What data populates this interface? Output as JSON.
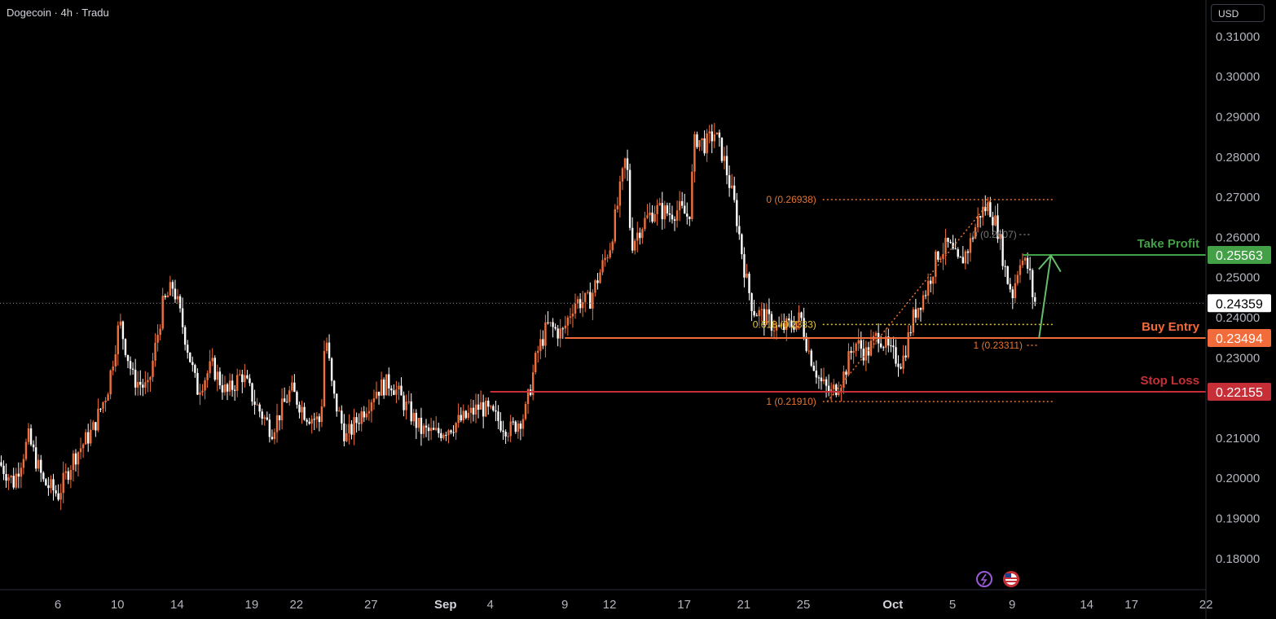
{
  "header": {
    "title": "Dogecoin · 4h · Tradu",
    "currency": "USD"
  },
  "chart_data": {
    "type": "candlestick",
    "symbol": "Dogecoin",
    "interval": "4h",
    "ylim": [
      0.1725,
      0.3145
    ],
    "y_ticks": [
      "0.31000",
      "0.30000",
      "0.29000",
      "0.28000",
      "0.27000",
      "0.26000",
      "0.25000",
      "0.24000",
      "0.23000",
      "0.21000",
      "0.20000",
      "0.19000",
      "0.18000"
    ],
    "y_tick_values": [
      0.31,
      0.3,
      0.29,
      0.28,
      0.27,
      0.26,
      0.25,
      0.24,
      0.23,
      0.21,
      0.2,
      0.19,
      0.18
    ],
    "x_ticks": [
      {
        "label": "6",
        "day": 6
      },
      {
        "label": "10",
        "day": 10
      },
      {
        "label": "14",
        "day": 14
      },
      {
        "label": "19",
        "day": 19
      },
      {
        "label": "22",
        "day": 22
      },
      {
        "label": "27",
        "day": 27
      },
      {
        "label": "Sep",
        "day": 32,
        "bold": true
      },
      {
        "label": "4",
        "day": 35
      },
      {
        "label": "9",
        "day": 40
      },
      {
        "label": "12",
        "day": 43
      },
      {
        "label": "17",
        "day": 48
      },
      {
        "label": "21",
        "day": 52
      },
      {
        "label": "25",
        "day": 56
      },
      {
        "label": "Oct",
        "day": 62,
        "bold": true
      },
      {
        "label": "5",
        "day": 66
      },
      {
        "label": "9",
        "day": 70
      },
      {
        "label": "14",
        "day": 75
      },
      {
        "label": "17",
        "day": 78
      },
      {
        "label": "22",
        "day": 83
      }
    ],
    "price_path": [
      [
        2.2,
        0.204
      ],
      [
        3.2,
        0.199
      ],
      [
        4.2,
        0.21
      ],
      [
        5.2,
        0.199
      ],
      [
        6.2,
        0.196
      ],
      [
        7.2,
        0.205
      ],
      [
        8.5,
        0.212
      ],
      [
        9.5,
        0.222
      ],
      [
        10.3,
        0.239
      ],
      [
        11.2,
        0.225
      ],
      [
        12.2,
        0.222
      ],
      [
        13.2,
        0.243
      ],
      [
        13.9,
        0.248
      ],
      [
        14.6,
        0.237
      ],
      [
        15.5,
        0.222
      ],
      [
        16.5,
        0.228
      ],
      [
        17.5,
        0.221
      ],
      [
        18.5,
        0.226
      ],
      [
        19.5,
        0.218
      ],
      [
        20.5,
        0.212
      ],
      [
        21.8,
        0.222
      ],
      [
        22.8,
        0.216
      ],
      [
        23.8,
        0.214
      ],
      [
        24.1,
        0.237
      ],
      [
        24.6,
        0.221
      ],
      [
        25.5,
        0.21
      ],
      [
        26.5,
        0.216
      ],
      [
        27.5,
        0.222
      ],
      [
        28.5,
        0.224
      ],
      [
        29.5,
        0.218
      ],
      [
        30.5,
        0.212
      ],
      [
        31.5,
        0.211
      ],
      [
        32.5,
        0.213
      ],
      [
        33.5,
        0.215
      ],
      [
        34.5,
        0.218
      ],
      [
        35.5,
        0.215
      ],
      [
        36.5,
        0.212
      ],
      [
        37.5,
        0.216
      ],
      [
        38.3,
        0.231
      ],
      [
        39.0,
        0.238
      ],
      [
        40.0,
        0.236
      ],
      [
        40.8,
        0.244
      ],
      [
        41.8,
        0.244
      ],
      [
        42.4,
        0.25
      ],
      [
        43.2,
        0.258
      ],
      [
        43.8,
        0.27
      ],
      [
        44.3,
        0.281
      ],
      [
        44.6,
        0.258
      ],
      [
        45.3,
        0.263
      ],
      [
        46.2,
        0.267
      ],
      [
        47.2,
        0.266
      ],
      [
        47.8,
        0.267
      ],
      [
        48.5,
        0.265
      ],
      [
        48.9,
        0.285
      ],
      [
        49.6,
        0.283
      ],
      [
        50.2,
        0.286
      ],
      [
        50.8,
        0.28
      ],
      [
        51.6,
        0.267
      ],
      [
        52.3,
        0.25
      ],
      [
        52.8,
        0.242
      ],
      [
        53.6,
        0.24
      ],
      [
        54.5,
        0.237
      ],
      [
        55.2,
        0.238
      ],
      [
        56.0,
        0.24
      ],
      [
        56.5,
        0.232
      ],
      [
        57.3,
        0.224
      ],
      [
        58.0,
        0.221
      ],
      [
        58.8,
        0.225
      ],
      [
        59.6,
        0.234
      ],
      [
        60.4,
        0.231
      ],
      [
        61.2,
        0.236
      ],
      [
        62.0,
        0.231
      ],
      [
        62.8,
        0.229
      ],
      [
        63.6,
        0.241
      ],
      [
        64.4,
        0.247
      ],
      [
        65.2,
        0.256
      ],
      [
        65.9,
        0.258
      ],
      [
        66.6,
        0.253
      ],
      [
        67.3,
        0.258
      ],
      [
        68.0,
        0.266
      ],
      [
        68.6,
        0.268
      ],
      [
        69.2,
        0.262
      ],
      [
        69.8,
        0.25
      ],
      [
        70.2,
        0.246
      ],
      [
        70.7,
        0.255
      ],
      [
        71.3,
        0.252
      ],
      [
        71.6,
        0.244
      ]
    ],
    "levels": [
      {
        "name": "Take Profit",
        "value": 0.25563,
        "label": "0.25563",
        "color": "#43a047",
        "from_day": 70.7
      },
      {
        "name": "Buy Entry",
        "value": 0.23494,
        "label": "0.23494",
        "color": "#f26b3a",
        "from_day": 40.0
      },
      {
        "name": "Stop Loss",
        "value": 0.22155,
        "label": "0.22155",
        "color": "#c62f38",
        "from_day": 35.0
      }
    ],
    "current_price": {
      "value": 0.24359,
      "label": "0.24359"
    },
    "fib_levels": [
      {
        "label": "0 (0.26938)",
        "value": 0.26938,
        "color": "#e8732e"
      },
      {
        "label": "0.618 (0.2383)",
        "value": 0.2383,
        "color": "#e6c53a"
      },
      {
        "label": "1 (0.21910)",
        "value": 0.2191,
        "color": "#e8732e"
      }
    ],
    "fib_levels_2": [
      {
        "label": "0 (0.2607)",
        "value": 0.2607,
        "color": "#777777"
      },
      {
        "label": "1 (0.23311)",
        "value": 0.23311,
        "color": "#e8732e"
      }
    ],
    "projection_arrow": {
      "from": [
        71.8,
        0.2349
      ],
      "to": [
        72.6,
        0.2555
      ]
    }
  },
  "bottom_icons": [
    "lightning-icon",
    "us-flag-icon"
  ]
}
